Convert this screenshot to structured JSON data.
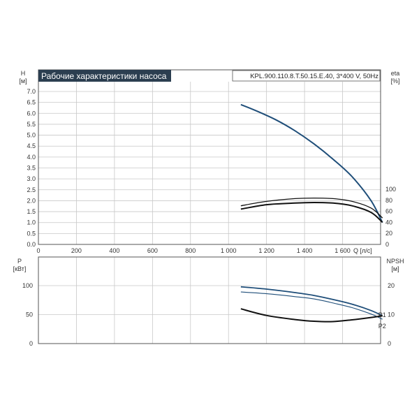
{
  "chart_data": [
    {
      "type": "line",
      "title": "Рабочие характеристики насоса",
      "model": "KPL.900.110.8.T.50.15.E.40, 3*400 V, 50Hz",
      "left_axis": {
        "label": "H",
        "unit": "[м]",
        "range": [
          0,
          7.0
        ],
        "ticks": [
          "0.0",
          "0.5",
          "1.0",
          "1.5",
          "2.0",
          "2.5",
          "3.0",
          "3.5",
          "4.0",
          "4.5",
          "5.0",
          "5.5",
          "6.0",
          "6.5",
          "7.0"
        ]
      },
      "right_axis": {
        "label": "eta",
        "unit": "[%]",
        "range": [
          0,
          100
        ],
        "ticks": [
          "0",
          "20",
          "40",
          "60",
          "80",
          "100"
        ]
      },
      "x_axis": {
        "label": "Q",
        "unit": "[л/с]",
        "range": [
          0,
          1800
        ],
        "ticks": [
          "0",
          "200",
          "400",
          "600",
          "800",
          "1 000",
          "1 200",
          "1 400",
          "1 600"
        ]
      },
      "grid": true,
      "series": [
        {
          "name": "",
          "axis": "left",
          "color": "#1f4e79",
          "x": [
            1065,
            1150,
            1250,
            1350,
            1450,
            1550,
            1650,
            1750,
            1810
          ],
          "y": [
            6.4,
            6.1,
            5.7,
            5.2,
            4.6,
            3.9,
            3.1,
            2.0,
            1.0
          ]
        },
        {
          "name": "",
          "axis": "right",
          "color": "#111111",
          "x": [
            1065,
            1200,
            1350,
            1450,
            1550,
            1650,
            1750,
            1810
          ],
          "y": [
            70,
            78,
            83,
            84,
            83,
            78,
            66,
            48
          ]
        },
        {
          "name": "",
          "axis": "right",
          "color": "#111111",
          "x": [
            1065,
            1200,
            1350,
            1450,
            1550,
            1650,
            1750,
            1810
          ],
          "y": [
            64,
            72,
            75,
            76,
            75,
            70,
            58,
            40
          ]
        }
      ]
    },
    {
      "type": "line",
      "left_axis": {
        "label": "P",
        "unit": "[кВт]",
        "range": [
          0,
          140
        ],
        "ticks": [
          "0",
          "50",
          "100"
        ]
      },
      "right_axis": {
        "label": "NPSH",
        "unit": "[м]",
        "range": [
          0,
          28
        ],
        "ticks": [
          "0",
          "10",
          "20"
        ]
      },
      "x_axis": {
        "range": [
          0,
          1800
        ]
      },
      "grid": true,
      "series": [
        {
          "name": "P1",
          "axis": "left",
          "color": "#1f4e79",
          "x": [
            1065,
            1200,
            1350,
            1450,
            1550,
            1650,
            1750,
            1810
          ],
          "y": [
            98,
            94,
            88,
            83,
            76,
            68,
            57,
            48
          ]
        },
        {
          "name": "P2",
          "axis": "left",
          "color": "#1f4e79",
          "x": [
            1065,
            1200,
            1350,
            1450,
            1550,
            1650,
            1750,
            1810
          ],
          "y": [
            89,
            86,
            81,
            77,
            70,
            62,
            51,
            42
          ]
        },
        {
          "name": "",
          "axis": "right",
          "color": "#111111",
          "x": [
            1065,
            1200,
            1350,
            1450,
            1550,
            1650,
            1750,
            1810
          ],
          "y": [
            12,
            9.7,
            8.3,
            7.7,
            7.6,
            8.2,
            9.0,
            9.6
          ]
        }
      ]
    }
  ]
}
